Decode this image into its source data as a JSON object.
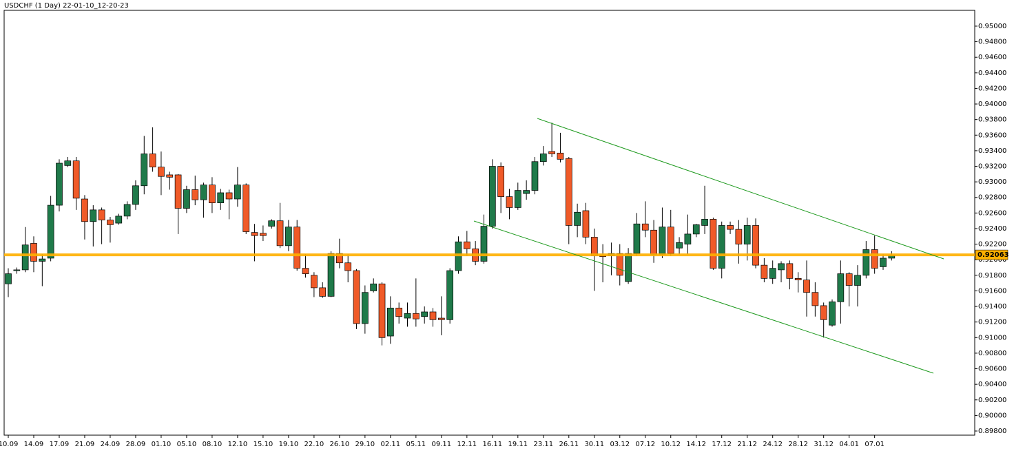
{
  "chart_data": {
    "type": "candlestick",
    "title": "USDCHF (1 Day) 22-01-10_12-20-23",
    "categories": [
      "10.09",
      null,
      null,
      "14.09",
      null,
      null,
      "17.09",
      null,
      null,
      "21.09",
      null,
      null,
      "24.09",
      null,
      null,
      "28.09",
      null,
      null,
      "01.10",
      null,
      null,
      "05.10",
      null,
      null,
      "08.10",
      null,
      null,
      "12.10",
      null,
      null,
      "15.10",
      null,
      null,
      "19.10",
      null,
      null,
      "22.10",
      null,
      null,
      "26.10",
      null,
      null,
      "29.10",
      null,
      null,
      "02.11",
      null,
      null,
      "05.11",
      null,
      null,
      "09.11",
      null,
      null,
      "12.11",
      null,
      null,
      "16.11",
      null,
      null,
      "19.11",
      null,
      null,
      "23.11",
      null,
      null,
      "26.11",
      null,
      null,
      "30.11",
      null,
      null,
      "03.12",
      null,
      null,
      "07.12",
      null,
      null,
      "10.12",
      null,
      null,
      "14.12",
      null,
      null,
      "17.12",
      null,
      null,
      "21.12",
      null,
      null,
      "24.12",
      null,
      null,
      "28.12",
      null,
      null,
      "31.12",
      null,
      null,
      "04.01",
      null,
      null,
      "07.01",
      null,
      null
    ],
    "open": [
      0.9169,
      0.9186,
      0.9187,
      0.9221,
      0.9198,
      0.9202,
      0.927,
      0.9321,
      0.9327,
      0.9278,
      0.9249,
      0.9264,
      0.9251,
      0.9247,
      0.9256,
      0.9271,
      0.9295,
      0.9336,
      0.9319,
      0.9309,
      0.9309,
      0.9266,
      0.929,
      0.9277,
      0.9296,
      0.9273,
      0.9286,
      0.9278,
      0.9296,
      0.9235,
      0.9234,
      0.9243,
      0.925,
      0.9218,
      0.9242,
      0.9189,
      0.918,
      0.9164,
      0.9153,
      0.9208,
      0.9196,
      0.9186,
      0.9118,
      0.916,
      0.9169,
      0.9102,
      0.9138,
      0.9125,
      0.9131,
      0.9127,
      0.9133,
      0.9125,
      0.9123,
      0.9186,
      0.9223,
      0.9214,
      0.9198,
      0.9243,
      0.932,
      0.9281,
      0.9267,
      0.9285,
      0.9289,
      0.9326,
      0.9339,
      0.9337,
      0.933,
      0.9244,
      0.9263,
      0.9229,
      0.9206,
      0.9205,
      0.9208,
      0.9172,
      0.9208,
      0.9246,
      0.9238,
      0.9207,
      0.9242,
      0.9215,
      0.922,
      0.9233,
      0.9244,
      0.9252,
      0.9189,
      0.9244,
      0.9239,
      0.922,
      0.9244,
      0.9193,
      0.9176,
      0.9187,
      0.9195,
      0.9176,
      0.9174,
      0.9158,
      0.9141,
      0.9116,
      0.9146,
      0.9182,
      0.9167,
      0.918,
      0.9213,
      0.9191,
      0.9202
    ],
    "high": [
      0.9189,
      0.919,
      0.9242,
      0.923,
      0.9207,
      0.9282,
      0.9329,
      0.9332,
      0.9332,
      0.9283,
      0.927,
      0.9267,
      0.9255,
      0.9259,
      0.9275,
      0.9302,
      0.9359,
      0.937,
      0.9339,
      0.9313,
      0.931,
      0.9295,
      0.9308,
      0.9299,
      0.9306,
      0.9291,
      0.929,
      0.9319,
      0.9298,
      0.9246,
      0.9244,
      0.9252,
      0.9273,
      0.9251,
      0.9251,
      0.9207,
      0.9184,
      0.9171,
      0.9211,
      0.9227,
      0.9207,
      0.9188,
      0.9167,
      0.9176,
      0.9171,
      0.9153,
      0.9145,
      0.9145,
      0.9176,
      0.914,
      0.9138,
      0.9153,
      0.9189,
      0.923,
      0.9237,
      0.9224,
      0.9258,
      0.9329,
      0.9325,
      0.9291,
      0.9299,
      0.9302,
      0.9332,
      0.9346,
      0.9376,
      0.9363,
      0.9332,
      0.9272,
      0.9273,
      0.924,
      0.922,
      0.9222,
      0.922,
      0.9215,
      0.926,
      0.9275,
      0.9251,
      0.9267,
      0.9264,
      0.9229,
      0.9258,
      0.9246,
      0.9295,
      0.9254,
      0.9249,
      0.9249,
      0.9251,
      0.9254,
      0.9253,
      0.9202,
      0.9199,
      0.9198,
      0.9199,
      0.9184,
      0.9199,
      0.9171,
      0.9145,
      0.9149,
      0.9199,
      0.9184,
      0.9193,
      0.9224,
      0.9231,
      0.9207,
      0.9211
    ],
    "low": [
      0.9152,
      0.9182,
      0.9184,
      0.9184,
      0.9166,
      0.9198,
      0.9262,
      0.9319,
      0.9264,
      0.9226,
      0.9217,
      0.922,
      0.9222,
      0.9245,
      0.9252,
      0.9264,
      0.9284,
      0.9313,
      0.9283,
      0.929,
      0.9233,
      0.926,
      0.927,
      0.9254,
      0.926,
      0.9264,
      0.9252,
      0.9268,
      0.9233,
      0.9198,
      0.9224,
      0.924,
      0.9215,
      0.9211,
      0.9186,
      0.9177,
      0.9152,
      0.9151,
      0.9152,
      0.9189,
      0.9171,
      0.9111,
      0.9105,
      0.9158,
      0.909,
      0.9092,
      0.9118,
      0.9114,
      0.9114,
      0.9118,
      0.9114,
      0.9103,
      0.9118,
      0.9182,
      0.9205,
      0.9193,
      0.9195,
      0.924,
      0.926,
      0.9252,
      0.9264,
      0.9277,
      0.9284,
      0.9321,
      0.9332,
      0.9325,
      0.922,
      0.9229,
      0.922,
      0.916,
      0.9171,
      0.918,
      0.9167,
      0.9169,
      0.9205,
      0.9229,
      0.9196,
      0.9202,
      0.9205,
      0.9207,
      0.9207,
      0.9229,
      0.9233,
      0.9187,
      0.9176,
      0.9233,
      0.9195,
      0.9199,
      0.9189,
      0.9171,
      0.9169,
      0.9171,
      0.9162,
      0.9158,
      0.9127,
      0.9127,
      0.91,
      0.9114,
      0.9118,
      0.914,
      0.914,
      0.9176,
      0.9182,
      0.9187,
      0.9199
    ],
    "close": [
      0.9182,
      0.9187,
      0.9219,
      0.9198,
      0.9201,
      0.927,
      0.9324,
      0.9327,
      0.9279,
      0.9249,
      0.9264,
      0.9251,
      0.9245,
      0.9256,
      0.9271,
      0.9295,
      0.9336,
      0.9319,
      0.9307,
      0.9306,
      0.9266,
      0.929,
      0.9277,
      0.9296,
      0.9273,
      0.9286,
      0.9278,
      0.9296,
      0.9236,
      0.9231,
      0.9231,
      0.925,
      0.9218,
      0.9242,
      0.9189,
      0.9182,
      0.9164,
      0.9153,
      0.9208,
      0.9196,
      0.9186,
      0.9118,
      0.9158,
      0.9169,
      0.91,
      0.9138,
      0.9127,
      0.9131,
      0.9124,
      0.9133,
      0.9123,
      0.9123,
      0.9186,
      0.9223,
      0.9214,
      0.9198,
      0.9243,
      0.932,
      0.9281,
      0.9267,
      0.9289,
      0.9289,
      0.9326,
      0.9336,
      0.9336,
      0.9329,
      0.9244,
      0.9261,
      0.9229,
      0.9205,
      0.9204,
      0.9208,
      0.918,
      0.9208,
      0.9246,
      0.9238,
      0.9207,
      0.9242,
      0.9208,
      0.9222,
      0.9233,
      0.9245,
      0.9252,
      0.9189,
      0.9244,
      0.9239,
      0.922,
      0.9244,
      0.9193,
      0.9176,
      0.9189,
      0.9195,
      0.9176,
      0.9174,
      0.9158,
      0.9141,
      0.9123,
      0.9146,
      0.9182,
      0.9167,
      0.918,
      0.9213,
      0.9189,
      0.9202,
      0.9206
    ],
    "up_color": "#1f7a4a",
    "down_color": "#f05a28",
    "current_price": 0.92063,
    "current_price_color": "#ffb000",
    "ylim": [
      0.89747,
      0.95203
    ],
    "yticks": [
      {
        "value": 0.898,
        "label": "0.89800"
      },
      {
        "value": 0.9,
        "label": "0.90000"
      },
      {
        "value": 0.902,
        "label": "0.90200"
      },
      {
        "value": 0.904,
        "label": "0.90400"
      },
      {
        "value": 0.906,
        "label": "0.90600"
      },
      {
        "value": 0.908,
        "label": "0.90800"
      },
      {
        "value": 0.91,
        "label": "0.91000"
      },
      {
        "value": 0.912,
        "label": "0.91200"
      },
      {
        "value": 0.914,
        "label": "0.91400"
      },
      {
        "value": 0.916,
        "label": "0.91600"
      },
      {
        "value": 0.918,
        "label": "0.91800"
      },
      {
        "value": 0.92,
        "label": "0.92000"
      },
      {
        "value": 0.922,
        "label": "0.92200"
      },
      {
        "value": 0.924,
        "label": "0.92400"
      },
      {
        "value": 0.926,
        "label": "0.92600"
      },
      {
        "value": 0.928,
        "label": "0.92800"
      },
      {
        "value": 0.93,
        "label": "0.93000"
      },
      {
        "value": 0.932,
        "label": "0.93200"
      },
      {
        "value": 0.934,
        "label": "0.93400"
      },
      {
        "value": 0.936,
        "label": "0.93600"
      },
      {
        "value": 0.938,
        "label": "0.93800"
      },
      {
        "value": 0.94,
        "label": "0.94000"
      },
      {
        "value": 0.942,
        "label": "0.94200"
      },
      {
        "value": 0.944,
        "label": "0.94400"
      },
      {
        "value": 0.946,
        "label": "0.94600"
      },
      {
        "value": 0.948,
        "label": "0.94800"
      },
      {
        "value": 0.95,
        "label": "0.95000"
      }
    ],
    "grid": false
  }
}
